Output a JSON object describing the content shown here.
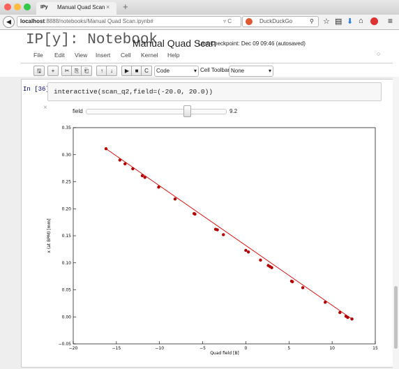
{
  "browser": {
    "tab_icon": "IPy",
    "tab_title": "Manual Quad Scan",
    "url_host": "localhost",
    "url_rest": ":8888/notebooks/Manual Quad Scan.ipynb#",
    "search": "DuckDuckGo"
  },
  "notebook": {
    "logo": "IP[y]: Notebook",
    "name": "Manual Quad Scan",
    "checkpoint": "Last Checkpoint: Dec 09 09:46 (autosaved)",
    "menu": [
      "File",
      "Edit",
      "View",
      "Insert",
      "Cell",
      "Kernel",
      "Help"
    ],
    "cell_type": "Code",
    "cell_toolbar_label": "Cell Toolbar:",
    "cell_toolbar_value": "None",
    "prompt": "In [36]:",
    "code": "interactive(scan_q2,field=(-20.0, 20.0))",
    "widget": {
      "label": "field",
      "value": 9.2
    }
  },
  "chart_data": {
    "type": "scatter",
    "xlabel": "Quad field [B]",
    "ylabel": "x (at BPM) [mm]",
    "xlim": [
      -20,
      15
    ],
    "ylim": [
      -0.05,
      0.35
    ],
    "xticks": [
      {
        "value": -20,
        "label": "−20"
      },
      {
        "value": -15,
        "label": "−15"
      },
      {
        "value": -10,
        "label": "−10"
      },
      {
        "value": -5,
        "label": "−5"
      },
      0,
      5,
      10,
      15
    ],
    "yticks": [
      {
        "value": -0.05,
        "label": "−0.05"
      },
      {
        "value": 0,
        "label": "0.00"
      },
      0.05,
      {
        "value": 0.1,
        "label": "0.10"
      },
      0.15,
      {
        "value": 0.2,
        "label": "0.20"
      },
      0.25,
      {
        "value": 0.3,
        "label": "0.30"
      },
      0.35
    ],
    "series": [
      {
        "color": "#b30000",
        "x": [
          -16.2,
          -14.6,
          -14.0,
          -13.1,
          -12.0,
          -11.7,
          -10.1,
          -8.2,
          -6.0,
          -5.9,
          -3.5,
          -3.3,
          -2.6,
          0.0,
          0.3,
          1.7,
          2.6,
          2.8,
          3.0,
          5.3,
          5.4,
          6.6,
          9.2,
          10.9,
          11.6,
          11.8,
          12.3
        ],
        "values": [
          0.311,
          0.29,
          0.283,
          0.274,
          0.261,
          0.258,
          0.24,
          0.218,
          0.191,
          0.19,
          0.162,
          0.161,
          0.152,
          0.123,
          0.12,
          0.105,
          0.095,
          0.093,
          0.091,
          0.066,
          0.065,
          0.054,
          0.027,
          0.008,
          0.001,
          -0.001,
          -0.004
        ]
      },
      {
        "color": "#e00000",
        "x": [
          -16.2,
          12.3
        ],
        "values": [
          0.311,
          -0.004
        ]
      }
    ]
  }
}
